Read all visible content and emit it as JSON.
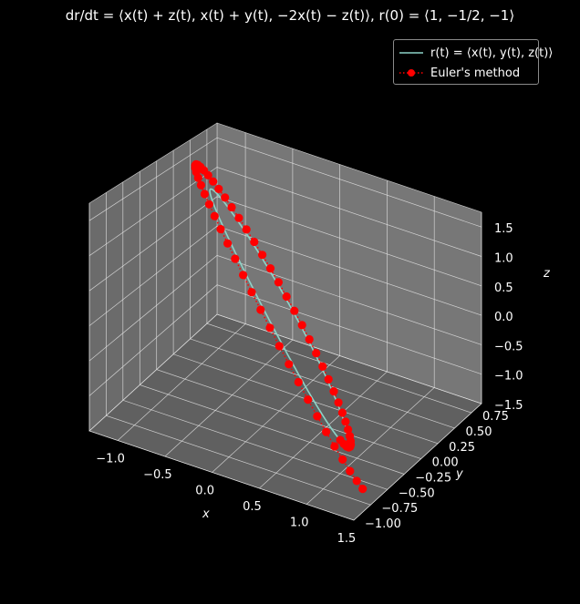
{
  "title": "dr/dt = ⟨x(t) + z(t), x(t) + y(t), −2x(t) − z(t)⟩, r(0) = ⟨1, −1/2, −1⟩",
  "legend": {
    "exact_label": "r(t) = ⟨x(t), y(t), z(t)⟩",
    "euler_label": "Euler's method"
  },
  "colors": {
    "background": "#000000",
    "pane": "#7a7a7a",
    "exact": "#8dd3c7",
    "euler": "#ff0000"
  },
  "chart_data": {
    "type": "scatter",
    "projection": "3d",
    "xlabel": "x",
    "ylabel": "y",
    "zlabel": "z",
    "xlim": [
      -1.3,
      1.5
    ],
    "ylim": [
      -1.0,
      0.9
    ],
    "zlim": [
      -1.5,
      1.75
    ],
    "x_ticks": [
      "−1.0",
      "−0.5",
      "0.0",
      "0.5",
      "1.0",
      "1.5"
    ],
    "y_ticks": [
      "−1.00",
      "−0.75",
      "−0.50",
      "−0.25",
      "0.00",
      "0.25",
      "0.50",
      "0.75"
    ],
    "z_ticks": [
      "−1.5",
      "−1.0",
      "−0.5",
      "0.0",
      "0.5",
      "1.0",
      "1.5"
    ],
    "grid": true,
    "legend_position": "top-right",
    "system": {
      "dx": [
        1,
        0,
        1
      ],
      "dy": [
        1,
        1,
        0
      ],
      "dz": [
        -2,
        0,
        -1
      ],
      "initial": [
        1,
        -0.5,
        -1
      ],
      "t_end": 6.283,
      "euler_steps": 60
    },
    "series": [
      {
        "name": "r(t) = ⟨x(t), y(t), z(t)⟩",
        "style": "line"
      },
      {
        "name": "Euler's method",
        "style": "dotted-markers"
      }
    ]
  }
}
